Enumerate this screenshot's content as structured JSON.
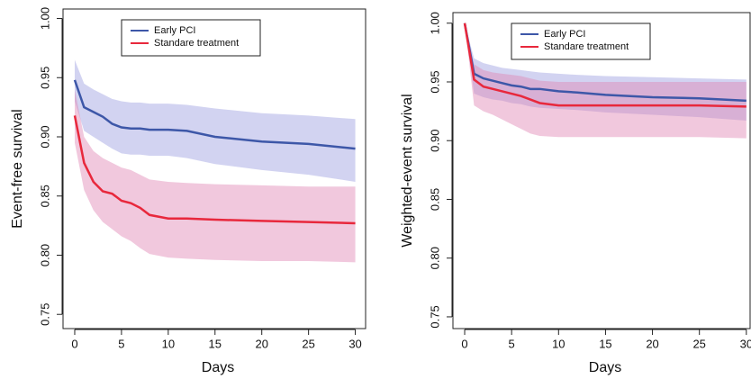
{
  "chart_data": [
    {
      "type": "line",
      "ylabel": "Event-free survival",
      "xlabel": "Days",
      "legend": "top-left",
      "band_opacity": 0.45,
      "x": [
        0,
        1,
        2,
        3,
        4,
        5,
        6,
        7,
        8,
        10,
        12,
        15,
        20,
        25,
        30
      ],
      "xlim": [
        -1.25,
        31.1
      ],
      "ylim": [
        0.738,
        1.008
      ],
      "xticks": [
        0,
        5,
        10,
        15,
        20,
        25,
        30
      ],
      "yticks": [
        0.75,
        {
          "value": 0.8,
          "label": "0.80"
        },
        0.85,
        {
          "value": 0.9,
          "label": "0.90"
        },
        0.95,
        {
          "value": 1.0,
          "label": "1.00"
        }
      ],
      "series": [
        {
          "name": "Early PCI",
          "color": "#3d57a8",
          "band_color": "#9c9ee0",
          "values": [
            0.948,
            0.925,
            0.921,
            0.917,
            0.911,
            0.908,
            0.907,
            0.907,
            0.906,
            0.906,
            0.905,
            0.9,
            0.896,
            0.894,
            0.89
          ],
          "upper": [
            0.965,
            0.945,
            0.94,
            0.936,
            0.932,
            0.93,
            0.929,
            0.929,
            0.928,
            0.928,
            0.927,
            0.924,
            0.92,
            0.918,
            0.915
          ],
          "lower": [
            0.93,
            0.905,
            0.9,
            0.895,
            0.89,
            0.886,
            0.885,
            0.885,
            0.884,
            0.884,
            0.882,
            0.877,
            0.872,
            0.868,
            0.862
          ]
        },
        {
          "name": "Standare treatment",
          "color": "#e8283c",
          "band_color": "#df86b4",
          "values": [
            0.918,
            0.878,
            0.862,
            0.854,
            0.852,
            0.846,
            0.844,
            0.84,
            0.834,
            0.831,
            0.831,
            0.83,
            0.829,
            0.828,
            0.827
          ],
          "upper": [
            0.94,
            0.9,
            0.888,
            0.882,
            0.878,
            0.874,
            0.872,
            0.868,
            0.864,
            0.862,
            0.861,
            0.86,
            0.859,
            0.858,
            0.858
          ],
          "lower": [
            0.895,
            0.855,
            0.838,
            0.828,
            0.822,
            0.816,
            0.812,
            0.806,
            0.801,
            0.798,
            0.797,
            0.796,
            0.795,
            0.795,
            0.794
          ]
        }
      ]
    },
    {
      "type": "line",
      "ylabel": "Weighted-event survival",
      "xlabel": "Days",
      "legend": "top-left",
      "band_opacity": 0.45,
      "x": [
        0,
        1,
        2,
        3,
        4,
        5,
        6,
        7,
        8,
        10,
        12,
        15,
        20,
        25,
        30
      ],
      "xlim": [
        -1.25,
        30.4
      ],
      "ylim": [
        0.74,
        1.009
      ],
      "xticks": [
        0,
        5,
        10,
        15,
        20,
        25,
        30
      ],
      "yticks": [
        0.75,
        {
          "value": 0.8,
          "label": "0.80"
        },
        0.85,
        {
          "value": 0.9,
          "label": "0.90"
        },
        0.95,
        {
          "value": 1.0,
          "label": "1.00"
        }
      ],
      "series": [
        {
          "name": "Early PCI",
          "color": "#3d57a8",
          "band_color": "#9c9ee0",
          "values": [
            1.0,
            0.957,
            0.953,
            0.951,
            0.949,
            0.947,
            0.946,
            0.944,
            0.944,
            0.942,
            0.941,
            0.939,
            0.937,
            0.936,
            0.934
          ],
          "upper": [
            1.0,
            0.97,
            0.966,
            0.964,
            0.962,
            0.961,
            0.96,
            0.959,
            0.958,
            0.957,
            0.956,
            0.955,
            0.954,
            0.953,
            0.952
          ],
          "lower": [
            1.0,
            0.94,
            0.937,
            0.935,
            0.934,
            0.932,
            0.931,
            0.929,
            0.928,
            0.927,
            0.926,
            0.924,
            0.922,
            0.92,
            0.917
          ]
        },
        {
          "name": "Standare treatment",
          "color": "#e8283c",
          "band_color": "#df86b4",
          "values": [
            1.0,
            0.952,
            0.946,
            0.944,
            0.942,
            0.94,
            0.938,
            0.935,
            0.932,
            0.93,
            0.93,
            0.93,
            0.93,
            0.93,
            0.929
          ],
          "upper": [
            1.0,
            0.965,
            0.96,
            0.958,
            0.957,
            0.956,
            0.955,
            0.953,
            0.951,
            0.95,
            0.95,
            0.95,
            0.95,
            0.95,
            0.95
          ],
          "lower": [
            1.0,
            0.93,
            0.925,
            0.922,
            0.918,
            0.914,
            0.91,
            0.906,
            0.904,
            0.903,
            0.903,
            0.903,
            0.903,
            0.903,
            0.902
          ]
        }
      ]
    }
  ]
}
